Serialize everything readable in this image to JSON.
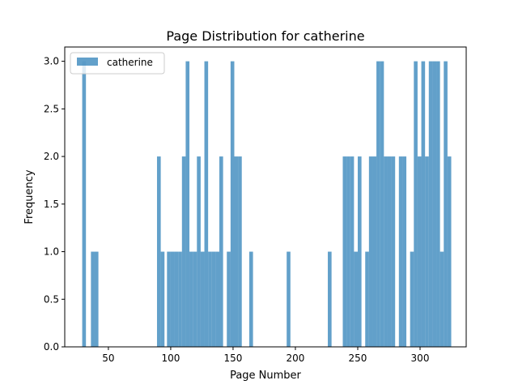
{
  "chart_data": {
    "type": "bar",
    "title": "Page Distribution for catherine",
    "xlabel": "Page Number",
    "ylabel": "Frequency",
    "xlim": [
      15,
      337
    ],
    "ylim": [
      0,
      3.15
    ],
    "x_ticks": [
      50,
      100,
      150,
      200,
      250,
      300
    ],
    "y_ticks": [
      0.0,
      0.5,
      1.0,
      1.5,
      2.0,
      2.5,
      3.0
    ],
    "y_tick_format": "fixed1",
    "grid": false,
    "legend": {
      "placement": "top-left",
      "entries": [
        "catherine"
      ]
    },
    "bin_width": 3,
    "series": [
      {
        "name": "catherine",
        "color": "#1f77b4",
        "opacity": 0.7,
        "bins": [
          [
            29,
            3
          ],
          [
            36,
            1
          ],
          [
            39,
            1
          ],
          [
            89,
            2
          ],
          [
            92,
            1
          ],
          [
            97,
            1
          ],
          [
            100,
            1
          ],
          [
            103,
            1
          ],
          [
            106,
            1
          ],
          [
            109,
            2
          ],
          [
            112,
            3
          ],
          [
            115,
            1
          ],
          [
            118,
            1
          ],
          [
            121,
            2
          ],
          [
            124,
            1
          ],
          [
            127,
            3
          ],
          [
            130,
            1
          ],
          [
            133,
            1
          ],
          [
            136,
            1
          ],
          [
            139,
            2
          ],
          [
            145,
            1
          ],
          [
            148,
            3
          ],
          [
            151,
            2
          ],
          [
            154,
            2
          ],
          [
            163,
            1
          ],
          [
            193,
            1
          ],
          [
            226,
            1
          ],
          [
            238,
            2
          ],
          [
            241,
            2
          ],
          [
            244,
            2
          ],
          [
            247,
            1
          ],
          [
            250,
            2
          ],
          [
            256,
            1
          ],
          [
            259,
            2
          ],
          [
            262,
            2
          ],
          [
            265,
            3
          ],
          [
            268,
            3
          ],
          [
            271,
            2
          ],
          [
            274,
            2
          ],
          [
            277,
            2
          ],
          [
            283,
            2
          ],
          [
            286,
            2
          ],
          [
            292,
            1
          ],
          [
            295,
            3
          ],
          [
            298,
            2
          ],
          [
            301,
            3
          ],
          [
            304,
            2
          ],
          [
            307,
            3
          ],
          [
            310,
            3
          ],
          [
            313,
            3
          ],
          [
            316,
            1
          ],
          [
            319,
            3
          ],
          [
            322,
            2
          ]
        ]
      }
    ]
  }
}
